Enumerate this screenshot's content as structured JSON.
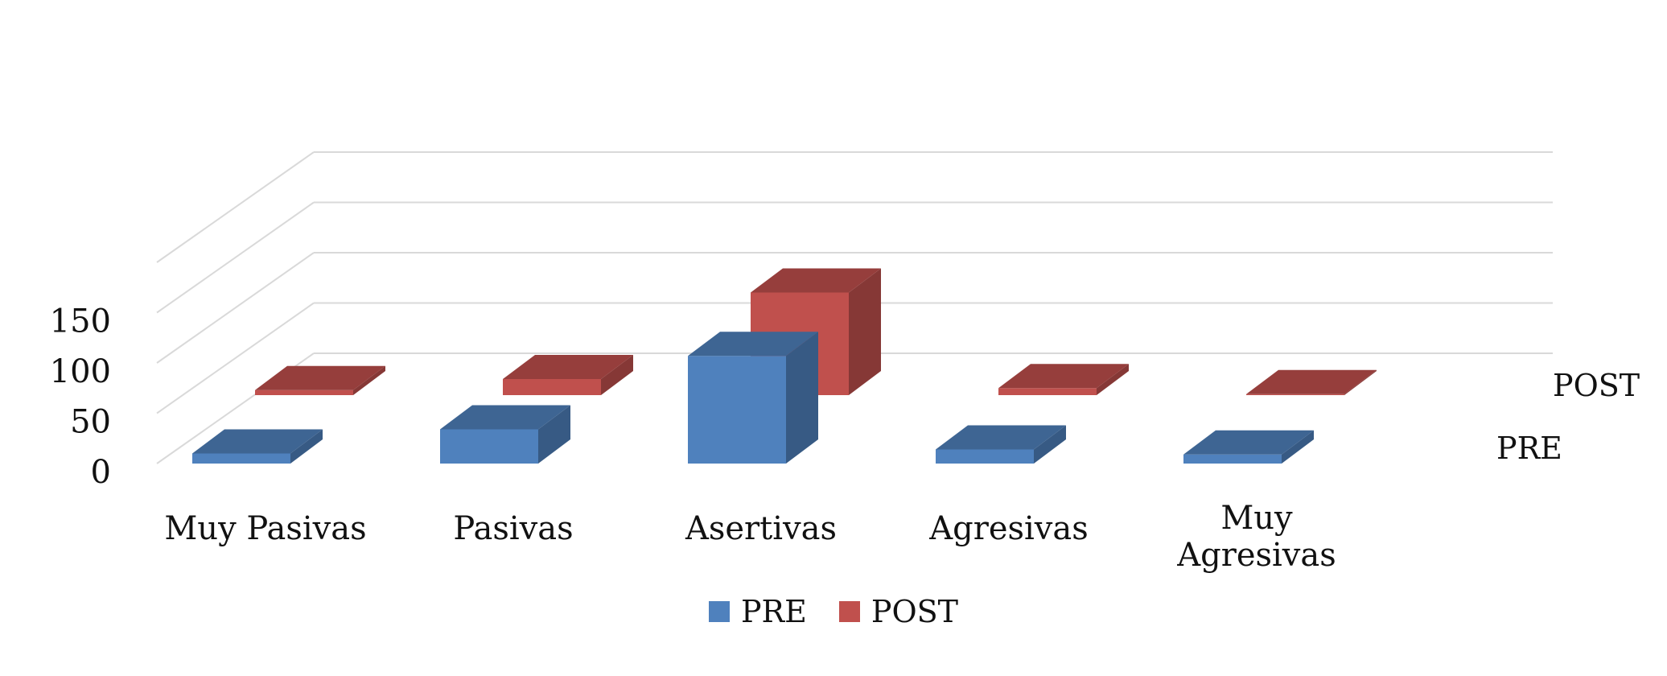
{
  "chart_data": {
    "type": "bar",
    "subtype": "3d-bar",
    "categories": [
      "Muy Pasivas",
      "Pasivas",
      "Asertivas",
      "Agresivas",
      "Muy Agresivas"
    ],
    "series": [
      {
        "name": "PRE",
        "values": [
          10,
          34,
          107,
          14,
          9
        ],
        "color": "#4f81bd"
      },
      {
        "name": "POST",
        "values": [
          5,
          16,
          102,
          7,
          1
        ],
        "color": "#c0504d"
      }
    ],
    "y_ticks": [
      "0",
      "50",
      "100",
      "150"
    ],
    "ylim": [
      0,
      200
    ],
    "grid": true,
    "legend": {
      "placement": "bottom",
      "items": [
        "PRE",
        "POST"
      ]
    },
    "depth_labels": [
      "PRE",
      "POST"
    ]
  }
}
